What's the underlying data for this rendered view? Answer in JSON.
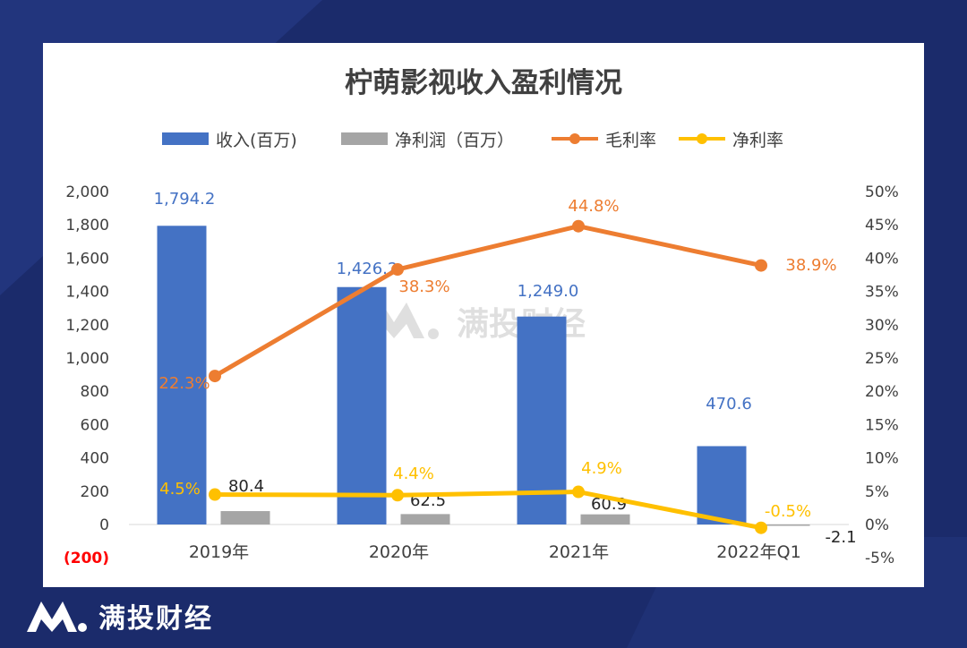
{
  "brand": {
    "name": "满投财经"
  },
  "watermark": {
    "text": "满投财经"
  },
  "colors": {
    "background": "#1b2b6b",
    "revenue": "#4472c4",
    "net_profit": "#a5a5a5",
    "gross_margin": "#ed7d31",
    "net_margin": "#ffc000",
    "negative_tick": "#ff0000"
  },
  "chart_data": {
    "type": "bar",
    "title": "柠萌影视收入盈利情况",
    "categories": [
      "2019年",
      "2020年",
      "2021年",
      "2022年Q1"
    ],
    "legend": [
      "收入(百万)",
      "净利润（百万）",
      "毛利率",
      "净利率"
    ],
    "series": [
      {
        "name": "收入(百万)",
        "kind": "bar",
        "axis": "left",
        "values": [
          1794.2,
          1426.2,
          1249.0,
          470.6
        ],
        "labels": [
          "1,794.2",
          "1,426.2",
          "1,249.0",
          "470.6"
        ]
      },
      {
        "name": "净利润（百万）",
        "kind": "bar",
        "axis": "left",
        "values": [
          80.4,
          62.5,
          60.9,
          -2.1
        ],
        "labels": [
          "80.4",
          "62.5",
          "60.9",
          "-2.1"
        ]
      },
      {
        "name": "毛利率",
        "kind": "line",
        "axis": "right",
        "values": [
          22.3,
          38.3,
          44.8,
          38.9
        ],
        "labels": [
          "22.3%",
          "38.3%",
          "44.8%",
          "38.9%"
        ]
      },
      {
        "name": "净利率",
        "kind": "line",
        "axis": "right",
        "values": [
          4.5,
          4.4,
          4.9,
          -0.5
        ],
        "labels": [
          "4.5%",
          "4.4%",
          "4.9%",
          "-0.5%"
        ]
      }
    ],
    "y_left": {
      "ylim": [
        -200,
        2000
      ],
      "ticks": [
        "(200)",
        "0",
        "200",
        "400",
        "600",
        "800",
        "1,000",
        "1,200",
        "1,400",
        "1,600",
        "1,800",
        "2,000"
      ]
    },
    "y_right": {
      "ylim": [
        -5,
        50
      ],
      "ticks": [
        "-5%",
        "0%",
        "5%",
        "10%",
        "15%",
        "20%",
        "25%",
        "30%",
        "35%",
        "40%",
        "45%",
        "50%"
      ]
    },
    "grid": false
  }
}
